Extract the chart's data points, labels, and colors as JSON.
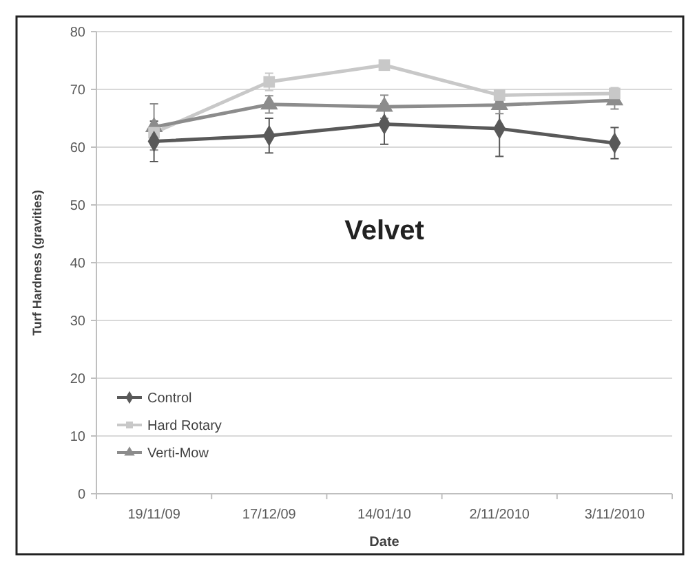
{
  "chart_data": {
    "type": "line",
    "title": "Velvet",
    "xlabel": "Date",
    "ylabel": "Turf Hardness (gravities)",
    "categories": [
      "19/11/09",
      "17/12/09",
      "14/01/10",
      "2/11/2010",
      "3/11/2010"
    ],
    "series": [
      {
        "name": "Control",
        "color": "#595959",
        "marker": "diamond",
        "values": [
          61,
          62,
          64,
          63.2,
          60.7
        ],
        "errors": [
          3.5,
          3,
          3.5,
          4.8,
          2.7
        ]
      },
      {
        "name": "Hard Rotary",
        "color": "#c8c8c8",
        "marker": "square",
        "values": [
          62.5,
          71.3,
          74.2,
          69,
          69.3
        ],
        "errors": [
          null,
          1.5,
          null,
          null,
          1
        ]
      },
      {
        "name": "Verti-Mow",
        "color": "#8c8c8c",
        "marker": "triangle",
        "values": [
          63.5,
          67.4,
          67,
          67.3,
          68.1
        ],
        "errors": [
          4,
          1.5,
          2,
          1.5,
          1.5
        ]
      }
    ],
    "ylim": [
      0,
      80
    ],
    "yticks": [
      0,
      10,
      20,
      30,
      40,
      50,
      60,
      70,
      80
    ],
    "grid": "y",
    "legend": "bottom left"
  }
}
